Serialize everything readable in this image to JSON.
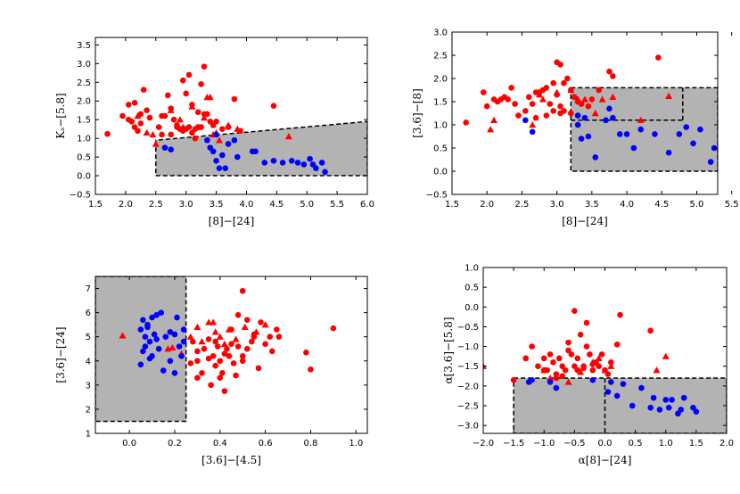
{
  "colors": {
    "red": "#ff0000",
    "blue": "#0000ff",
    "shade": "#b3b3b3"
  },
  "chart_data": [
    {
      "type": "scatter",
      "xlabel": "[8]−[24]",
      "ylabel": "Kₛ−[5.8]",
      "xlim": [
        1.5,
        6.0
      ],
      "ylim": [
        -0.5,
        3.7
      ],
      "xticks": [
        "1.5",
        "2.0",
        "2.5",
        "3.0",
        "3.5",
        "4.0",
        "4.5",
        "5.0",
        "5.5",
        "6.0"
      ],
      "yticks": [
        "−0.5",
        "0.0",
        "0.5",
        "1.0",
        "1.5",
        "2.0",
        "2.5",
        "3.0",
        "3.5"
      ],
      "xtick_values": [
        1.5,
        2.0,
        2.5,
        3.0,
        3.5,
        4.0,
        4.5,
        5.0,
        5.5,
        6.0
      ],
      "ytick_values": [
        -0.5,
        0.0,
        0.5,
        1.0,
        1.5,
        2.0,
        2.5,
        3.0,
        3.5
      ],
      "region": {
        "polygon": [
          [
            2.5,
            0.0
          ],
          [
            6.0,
            0.0
          ],
          [
            6.0,
            1.45
          ],
          [
            2.5,
            0.95
          ]
        ]
      },
      "series": [
        {
          "name": "red circles",
          "marker": "circle",
          "color": "red",
          "x": [
            1.7,
            1.95,
            2.05,
            2.1,
            2.15,
            2.2,
            2.25,
            2.3,
            2.35,
            2.4,
            2.05,
            2.15,
            2.25,
            2.6,
            2.65,
            2.7,
            2.75,
            2.8,
            2.85,
            2.9,
            2.95,
            3.0,
            3.05,
            3.1,
            3.15,
            3.2,
            3.25,
            2.85,
            2.95,
            3.05,
            3.0,
            3.1,
            3.2,
            3.3,
            3.35,
            3.4,
            3.45,
            3.5,
            3.6,
            3.7,
            3.8,
            3.9,
            4.45,
            2.55,
            2.6,
            2.75,
            3.15,
            3.3,
            3.25
          ],
          "y": [
            1.12,
            1.6,
            1.9,
            1.45,
            1.3,
            1.2,
            1.65,
            2.3,
            1.75,
            1.55,
            1.5,
            1.95,
            1.4,
            1.6,
            1.6,
            2.15,
            1.8,
            1.5,
            1.3,
            1.25,
            1.2,
            1.25,
            1.3,
            1.15,
            1.25,
            1.3,
            1.3,
            1.35,
            2.55,
            2.7,
            2.2,
            1.9,
            1.7,
            2.92,
            1.65,
            1.45,
            1.35,
            1.45,
            1.25,
            1.3,
            2.05,
            1.2,
            1.87,
            1.3,
            1.1,
            1.1,
            1.0,
            1.65,
            2.45
          ]
        },
        {
          "name": "red triangles",
          "marker": "triangle",
          "color": "red",
          "x": [
            2.2,
            2.35,
            2.45,
            2.5,
            2.75,
            2.9,
            3.1,
            3.2,
            3.35,
            3.4,
            3.45,
            3.5,
            3.55,
            3.7,
            3.85,
            2.95,
            3.3,
            4.7
          ],
          "y": [
            1.6,
            1.15,
            1.1,
            0.85,
            1.75,
            1.5,
            1.85,
            1.3,
            2.1,
            2.1,
            1.1,
            1.15,
            0.95,
            1.35,
            1.25,
            1.3,
            1.55,
            1.05
          ]
        },
        {
          "name": "blue circles",
          "marker": "circle",
          "color": "blue",
          "x": [
            2.65,
            2.75,
            3.35,
            3.4,
            3.45,
            3.5,
            3.55,
            3.6,
            3.7,
            3.8,
            3.85,
            4.1,
            4.15,
            4.3,
            4.45,
            4.6,
            4.75,
            4.85,
            4.95,
            5.05,
            5.1,
            5.15,
            5.25,
            3.5,
            3.65,
            5.3
          ],
          "y": [
            0.75,
            0.7,
            0.95,
            0.75,
            0.65,
            0.4,
            0.2,
            0.55,
            0.85,
            0.95,
            0.5,
            0.65,
            0.65,
            0.35,
            0.4,
            0.35,
            0.4,
            0.35,
            0.3,
            0.45,
            0.3,
            0.2,
            0.35,
            1.1,
            0.2,
            0.1
          ]
        }
      ]
    },
    {
      "type": "scatter",
      "xlabel": "[8]−[24]",
      "ylabel": "[3.6]−[8]",
      "xlim": [
        1.5,
        5.3
      ],
      "ylim": [
        -0.5,
        3.0
      ],
      "xticks": [
        "1.5",
        "2.0",
        "2.5",
        "3.0",
        "3.5",
        "4.0",
        "4.5",
        "5.0",
        "5.5"
      ],
      "yticks": [
        "−0.5",
        "0.0",
        "0.5",
        "1.0",
        "1.5",
        "2.0",
        "2.5",
        "3.0"
      ],
      "xtick_values": [
        1.5,
        2.0,
        2.5,
        3.0,
        3.5,
        4.0,
        4.5,
        5.0,
        5.5
      ],
      "ytick_values": [
        -0.5,
        0.0,
        0.5,
        1.0,
        1.5,
        2.0,
        2.5,
        3.0
      ],
      "region": {
        "x_range": [
          3.2,
          5.3
        ],
        "y_range": [
          0.0,
          1.8
        ],
        "inner_dashed_y": 1.1,
        "inner_dashed_x": [
          3.2,
          4.8
        ]
      },
      "series": [
        {
          "name": "red circles",
          "marker": "circle",
          "color": "red",
          "x": [
            1.7,
            1.95,
            2.0,
            2.1,
            2.15,
            2.2,
            2.25,
            2.3,
            2.35,
            2.4,
            2.45,
            2.6,
            2.65,
            2.7,
            2.75,
            2.8,
            2.85,
            2.9,
            2.95,
            3.0,
            3.05,
            3.1,
            3.15,
            3.2,
            3.25,
            3.0,
            3.05,
            3.1,
            3.2,
            3.3,
            3.35,
            3.45,
            3.5,
            3.6,
            3.75,
            3.8,
            4.45,
            2.55,
            2.7,
            2.85,
            2.95,
            3.05
          ],
          "y": [
            1.05,
            1.7,
            1.4,
            1.55,
            1.5,
            1.55,
            1.6,
            1.55,
            1.8,
            1.45,
            1.2,
            1.6,
            1.45,
            1.7,
            1.7,
            1.75,
            1.8,
            1.45,
            1.9,
            2.35,
            2.3,
            1.9,
            2.0,
            1.75,
            1.6,
            1.65,
            1.4,
            1.3,
            1.25,
            1.5,
            1.45,
            1.4,
            1.55,
            1.75,
            2.15,
            2.05,
            2.45,
            1.3,
            1.15,
            1.2,
            1.3,
            1.25
          ]
        },
        {
          "name": "red triangles",
          "marker": "triangle",
          "color": "red",
          "x": [
            2.05,
            2.1,
            2.65,
            2.8,
            3.2,
            3.3,
            3.4,
            3.55,
            3.65,
            3.8,
            4.2,
            4.6,
            2.75,
            3.0
          ],
          "y": [
            0.9,
            1.1,
            1.0,
            1.55,
            1.75,
            1.55,
            1.55,
            1.25,
            1.55,
            1.6,
            1.1,
            1.62,
            1.65,
            1.7
          ]
        },
        {
          "name": "blue circles",
          "marker": "circle",
          "color": "blue",
          "x": [
            2.55,
            2.65,
            3.3,
            3.35,
            3.4,
            3.45,
            3.55,
            3.75,
            3.8,
            3.9,
            4.0,
            4.1,
            4.2,
            4.4,
            4.6,
            4.75,
            4.85,
            4.95,
            5.05,
            5.2,
            5.25,
            3.7,
            3.3
          ],
          "y": [
            1.1,
            0.85,
            1.0,
            0.7,
            1.15,
            0.75,
            0.3,
            1.35,
            1.15,
            0.8,
            0.8,
            0.5,
            0.9,
            0.8,
            0.4,
            0.8,
            0.95,
            0.6,
            0.9,
            0.2,
            0.5,
            1.1,
            1.2
          ]
        }
      ]
    },
    {
      "type": "scatter",
      "xlabel": "[3.6]−[4.5]",
      "ylabel": "[3.6]−[24]",
      "xlim": [
        -0.15,
        1.05
      ],
      "ylim": [
        1.0,
        7.5
      ],
      "xticks": [
        "0.0",
        "0.2",
        "0.4",
        "0.6",
        "0.8",
        "1.0"
      ],
      "yticks": [
        "1",
        "2",
        "3",
        "4",
        "5",
        "6",
        "7"
      ],
      "xtick_values": [
        0.0,
        0.2,
        0.4,
        0.6,
        0.8,
        1.0
      ],
      "ytick_values": [
        1,
        2,
        3,
        4,
        5,
        6,
        7
      ],
      "region": {
        "x_range": [
          -0.15,
          0.25
        ],
        "y_range": [
          1.5,
          7.5
        ]
      },
      "series": [
        {
          "name": "red circles",
          "marker": "circle",
          "color": "red",
          "x": [
            0.27,
            0.3,
            0.32,
            0.35,
            0.36,
            0.38,
            0.4,
            0.42,
            0.44,
            0.45,
            0.47,
            0.48,
            0.5,
            0.52,
            0.55,
            0.58,
            0.6,
            0.62,
            0.65,
            0.3,
            0.33,
            0.38,
            0.42,
            0.46,
            0.5,
            0.54,
            0.57,
            0.63,
            0.66,
            0.78,
            0.8,
            0.9,
            0.35,
            0.4,
            0.45,
            0.5,
            0.48,
            0.43,
            0.37,
            0.3,
            0.28,
            0.52,
            0.41,
            0.39,
            0.55
          ],
          "y": [
            3.9,
            4.4,
            3.5,
            4.1,
            3.0,
            4.8,
            4.0,
            2.75,
            4.2,
            5.3,
            3.4,
            4.6,
            6.9,
            4.5,
            5.1,
            5.6,
            4.7,
            5.0,
            5.3,
            3.3,
            4.5,
            3.8,
            4.3,
            3.9,
            4.2,
            4.8,
            3.7,
            4.4,
            5.0,
            4.35,
            3.65,
            5.35,
            4.9,
            3.3,
            4.7,
            4.0,
            5.9,
            4.5,
            4.2,
            4.0,
            4.8,
            5.7,
            3.5,
            4.6,
            5.0
          ]
        },
        {
          "name": "red triangles",
          "marker": "triangle",
          "color": "red",
          "x": [
            -0.03,
            0.17,
            0.19,
            0.23,
            0.27,
            0.3,
            0.32,
            0.35,
            0.38,
            0.4,
            0.44,
            0.47,
            0.51,
            0.56,
            0.6,
            0.37,
            0.42
          ],
          "y": [
            5.05,
            4.5,
            4.55,
            4.3,
            5.0,
            5.4,
            4.8,
            5.6,
            5.2,
            5.0,
            5.3,
            4.9,
            5.4,
            5.2,
            5.5,
            5.6,
            4.7
          ]
        },
        {
          "name": "blue circles",
          "marker": "circle",
          "color": "blue",
          "x": [
            0.05,
            0.06,
            0.07,
            0.08,
            0.09,
            0.1,
            0.11,
            0.12,
            0.13,
            0.14,
            0.15,
            0.16,
            0.18,
            0.2,
            0.21,
            0.22,
            0.23,
            0.24,
            0.06,
            0.08,
            0.1,
            0.12,
            0.18,
            0.2,
            0.24,
            0.05,
            0.07,
            0.09
          ],
          "y": [
            3.85,
            4.4,
            5.0,
            5.5,
            4.8,
            5.8,
            5.1,
            5.9,
            4.5,
            6.0,
            3.6,
            5.0,
            4.0,
            5.1,
            5.8,
            4.6,
            4.2,
            5.3,
            5.7,
            5.4,
            4.2,
            4.9,
            5.2,
            3.5,
            4.8,
            5.3,
            4.6,
            4.1
          ]
        }
      ]
    },
    {
      "type": "scatter",
      "xlabel": "α[8]−[24]",
      "ylabel": "α[3.6]−[5.8]",
      "xlim": [
        -2.0,
        2.0
      ],
      "ylim": [
        -3.2,
        1.0
      ],
      "xticks": [
        "−2.0",
        "−1.5",
        "−1.0",
        "−0.5",
        "0.0",
        "0.5",
        "1.0",
        "1.5",
        "2.0"
      ],
      "yticks": [
        "−3.0",
        "−2.5",
        "−2.0",
        "−1.5",
        "−1.0",
        "−0.5",
        "0.0",
        "0.5",
        "1.0"
      ],
      "xtick_values": [
        -2.0,
        -1.5,
        -1.0,
        -0.5,
        0.0,
        0.5,
        1.0,
        1.5,
        2.0
      ],
      "ytick_values": [
        -3.0,
        -2.5,
        -2.0,
        -1.5,
        -1.0,
        -0.5,
        0.0,
        0.5,
        1.0
      ],
      "region": {
        "x_range": [
          -1.5,
          2.0
        ],
        "y_range": [
          -3.2,
          -1.8
        ],
        "divider_x": 0.0
      },
      "series": [
        {
          "name": "red circles",
          "marker": "circle",
          "color": "red",
          "x": [
            -1.5,
            -1.3,
            -1.2,
            -1.1,
            -1.0,
            -0.95,
            -0.9,
            -0.85,
            -0.8,
            -0.75,
            -0.7,
            -0.65,
            -0.6,
            -0.55,
            -0.5,
            -0.45,
            -0.4,
            -0.35,
            -0.3,
            -0.25,
            -0.2,
            -0.15,
            -0.1,
            -0.05,
            0.0,
            0.05,
            0.1,
            0.2,
            0.25,
            -0.5,
            -0.45,
            -0.3,
            -0.6,
            -0.8,
            -1.0,
            0.75,
            -0.2,
            -0.35,
            -0.7
          ],
          "y": [
            -1.85,
            -1.3,
            -1.0,
            -1.5,
            -1.3,
            -1.6,
            -1.2,
            -1.4,
            -1.7,
            -1.3,
            -1.5,
            -1.6,
            -0.9,
            -1.2,
            -1.5,
            -1.3,
            -0.7,
            -1.5,
            -1.0,
            -1.2,
            -1.6,
            -1.4,
            -1.5,
            -1.2,
            -1.6,
            -1.7,
            -1.4,
            -0.95,
            -0.2,
            -0.1,
            -1.6,
            -0.4,
            -1.1,
            -1.8,
            -1.6,
            -0.6,
            -1.45,
            -1.55,
            -1.75
          ]
        },
        {
          "name": "red triangles",
          "marker": "triangle",
          "color": "red",
          "x": [
            -2.0,
            -1.0,
            -0.9,
            -0.6,
            -0.4,
            -0.2,
            -0.1,
            0.0,
            0.1,
            0.85,
            1.0
          ],
          "y": [
            -1.5,
            -1.6,
            -1.8,
            -1.9,
            -1.65,
            -1.4,
            -1.3,
            -1.6,
            -1.5,
            -1.6,
            -1.25
          ]
        },
        {
          "name": "blue circles",
          "marker": "circle",
          "color": "blue",
          "x": [
            -1.2,
            -0.9,
            -0.8,
            -0.2,
            0.05,
            0.1,
            0.2,
            0.3,
            0.45,
            0.6,
            0.75,
            0.8,
            0.9,
            1.0,
            1.05,
            1.1,
            1.2,
            1.25,
            1.3,
            1.45,
            1.5,
            -1.25
          ],
          "y": [
            -1.85,
            -1.9,
            -2.05,
            -1.85,
            -2.15,
            -1.9,
            -2.25,
            -1.95,
            -2.5,
            -2.05,
            -2.55,
            -2.3,
            -2.6,
            -2.35,
            -2.55,
            -2.35,
            -2.7,
            -2.6,
            -2.3,
            -2.55,
            -2.65,
            -1.9
          ]
        }
      ]
    }
  ]
}
